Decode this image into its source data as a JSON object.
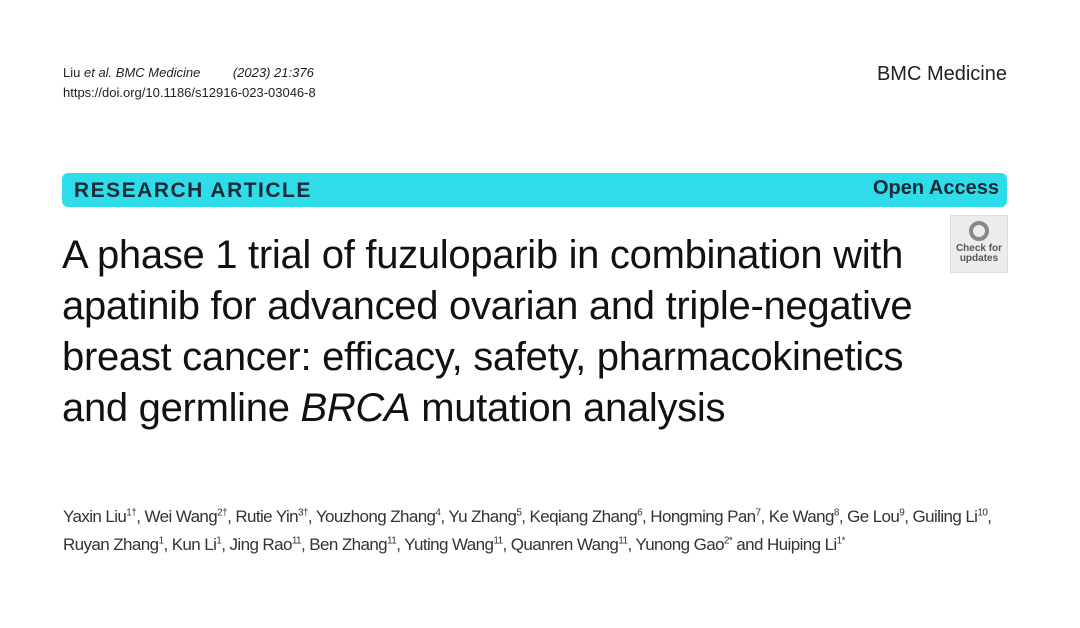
{
  "header": {
    "authors_short": "Liu",
    "etal": "et al.",
    "journal_cite": "BMC Medicine",
    "year_vol": "(2023) 21:376",
    "doi": "https://doi.org/10.1186/s12916-023-03046-8",
    "journal": "BMC Medicine"
  },
  "banner": {
    "type": "RESEARCH ARTICLE",
    "access": "Open Access"
  },
  "check_updates": {
    "line1": "Check for",
    "line2": "updates"
  },
  "title": {
    "part1": "A phase 1 trial of fuzuloparib in combination with apatinib for advanced ovarian and triple-negative breast cancer: efficacy, safety, pharmacokinetics and germline ",
    "italic": "BRCA",
    "part2": " mutation analysis"
  },
  "authors": [
    {
      "name": "Yaxin Liu",
      "sup": "1†",
      "sep": ", "
    },
    {
      "name": "Wei Wang",
      "sup": "2†",
      "sep": ", "
    },
    {
      "name": "Rutie Yin",
      "sup": "3†",
      "sep": ", "
    },
    {
      "name": "Youzhong Zhang",
      "sup": "4",
      "sep": ", "
    },
    {
      "name": "Yu Zhang",
      "sup": "5",
      "sep": ", "
    },
    {
      "name": "Keqiang Zhang",
      "sup": "6",
      "sep": ", "
    },
    {
      "name": "Hongming Pan",
      "sup": "7",
      "sep": ", "
    },
    {
      "name": "Ke Wang",
      "sup": "8",
      "sep": ", "
    },
    {
      "name": "Ge Lou",
      "sup": "9",
      "sep": ", "
    },
    {
      "name": "Guiling Li",
      "sup": "10",
      "sep": ", "
    },
    {
      "name": "Ruyan Zhang",
      "sup": "1",
      "sep": ", "
    },
    {
      "name": "Kun Li",
      "sup": "1",
      "sep": ", "
    },
    {
      "name": "Jing Rao",
      "sup": "11",
      "sep": ", "
    },
    {
      "name": "Ben Zhang",
      "sup": "11",
      "sep": ", "
    },
    {
      "name": "Yuting Wang",
      "sup": "11",
      "sep": ", "
    },
    {
      "name": "Quanren Wang",
      "sup": "11",
      "sep": ", "
    },
    {
      "name": "Yunong Gao",
      "sup": "2*",
      "sep": " and "
    },
    {
      "name": "Huiping Li",
      "sup": "1*",
      "sep": ""
    }
  ]
}
